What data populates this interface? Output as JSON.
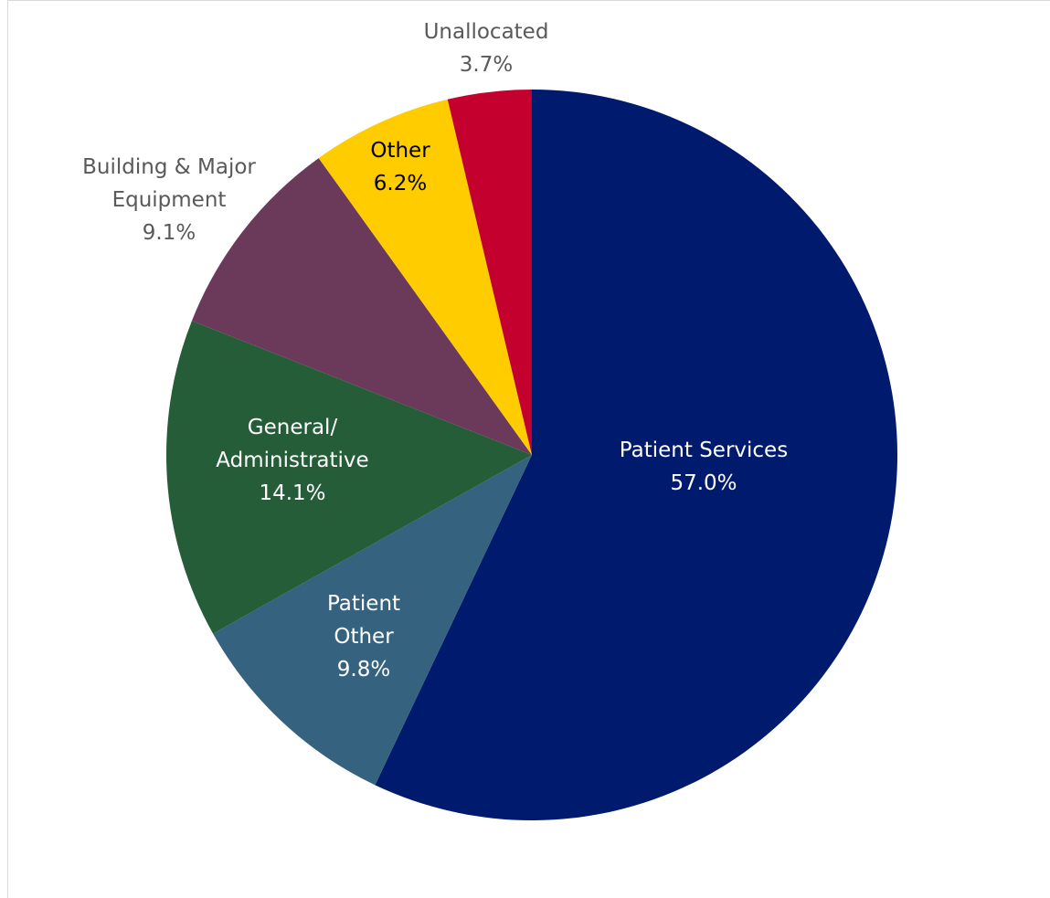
{
  "chart_data": {
    "type": "pie",
    "categories": [
      "Patient Services",
      "Patient\nOther",
      "General/\nAdministrative",
      "Building & Major\nEquipment",
      "Other",
      "Unallocated"
    ],
    "values": [
      57.0,
      9.8,
      14.1,
      9.1,
      6.2,
      3.7
    ],
    "value_labels": [
      "57.0%",
      "9.8%",
      "14.1%",
      "9.1%",
      "6.2%",
      "3.7%"
    ],
    "colors": [
      "#001a6e",
      "#35637f",
      "#245d38",
      "#6b3a5b",
      "#ffcc00",
      "#c4002f"
    ]
  }
}
